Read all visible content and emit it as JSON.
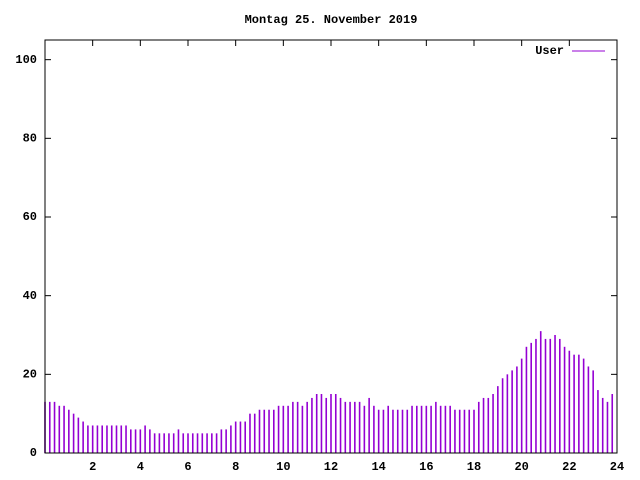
{
  "chart_data": {
    "type": "impulse",
    "title": "Montag 25. November 2019",
    "series": [
      {
        "name": "User",
        "color": "#9400d3",
        "x": [
          0,
          0.2,
          0.4,
          0.6,
          0.8,
          1,
          1.2,
          1.4,
          1.6,
          1.8,
          2,
          2.2,
          2.4,
          2.6,
          2.8,
          3,
          3.2,
          3.4,
          3.6,
          3.8,
          4,
          4.2,
          4.4,
          4.6,
          4.8,
          5,
          5.2,
          5.4,
          5.6,
          5.8,
          6,
          6.2,
          6.4,
          6.6,
          6.8,
          7,
          7.2,
          7.4,
          7.6,
          7.8,
          8,
          8.2,
          8.4,
          8.6,
          8.8,
          9,
          9.2,
          9.4,
          9.6,
          9.8,
          10,
          10.2,
          10.4,
          10.6,
          10.8,
          11,
          11.2,
          11.4,
          11.6,
          11.8,
          12,
          12.2,
          12.4,
          12.6,
          12.8,
          13,
          13.2,
          13.4,
          13.6,
          13.8,
          14,
          14.2,
          14.4,
          14.6,
          14.8,
          15,
          15.2,
          15.4,
          15.6,
          15.8,
          16,
          16.2,
          16.4,
          16.6,
          16.8,
          17,
          17.2,
          17.4,
          17.6,
          17.8,
          18,
          18.2,
          18.4,
          18.6,
          18.8,
          19,
          19.2,
          19.4,
          19.6,
          19.8,
          20,
          20.2,
          20.4,
          20.6,
          20.8,
          21,
          21.2,
          21.4,
          21.6,
          21.8,
          22,
          22.2,
          22.4,
          22.6,
          22.8,
          23,
          23.2,
          23.4,
          23.6,
          23.8
        ],
        "values": [
          13,
          13,
          13,
          12,
          12,
          11,
          10,
          9,
          8,
          7,
          7,
          7,
          7,
          7,
          7,
          7,
          7,
          7,
          6,
          6,
          6,
          7,
          6,
          5,
          5,
          5,
          5,
          5,
          6,
          5,
          5,
          5,
          5,
          5,
          5,
          5,
          5,
          6,
          6,
          7,
          8,
          8,
          8,
          10,
          10,
          11,
          11,
          11,
          11,
          12,
          12,
          12,
          13,
          13,
          12,
          13,
          14,
          15,
          15,
          14,
          15,
          15,
          14,
          13,
          13,
          13,
          13,
          12,
          14,
          12,
          11,
          11,
          12,
          11,
          11,
          11,
          11,
          12,
          12,
          12,
          12,
          12,
          13,
          12,
          12,
          12,
          11,
          11,
          11,
          11,
          11,
          13,
          14,
          14,
          15,
          17,
          19,
          20,
          21,
          22,
          24,
          27,
          28,
          29,
          31,
          29,
          29,
          30,
          29,
          27,
          26,
          25,
          25,
          24,
          22,
          21,
          16,
          14,
          13,
          15
        ]
      }
    ],
    "xlim": [
      0,
      24
    ],
    "xticks": [
      2,
      4,
      6,
      8,
      10,
      12,
      14,
      16,
      18,
      20,
      22,
      24
    ],
    "ylim": [
      0,
      105
    ],
    "yticks": [
      0,
      20,
      40,
      60,
      80,
      100
    ],
    "legend": "top-right"
  }
}
